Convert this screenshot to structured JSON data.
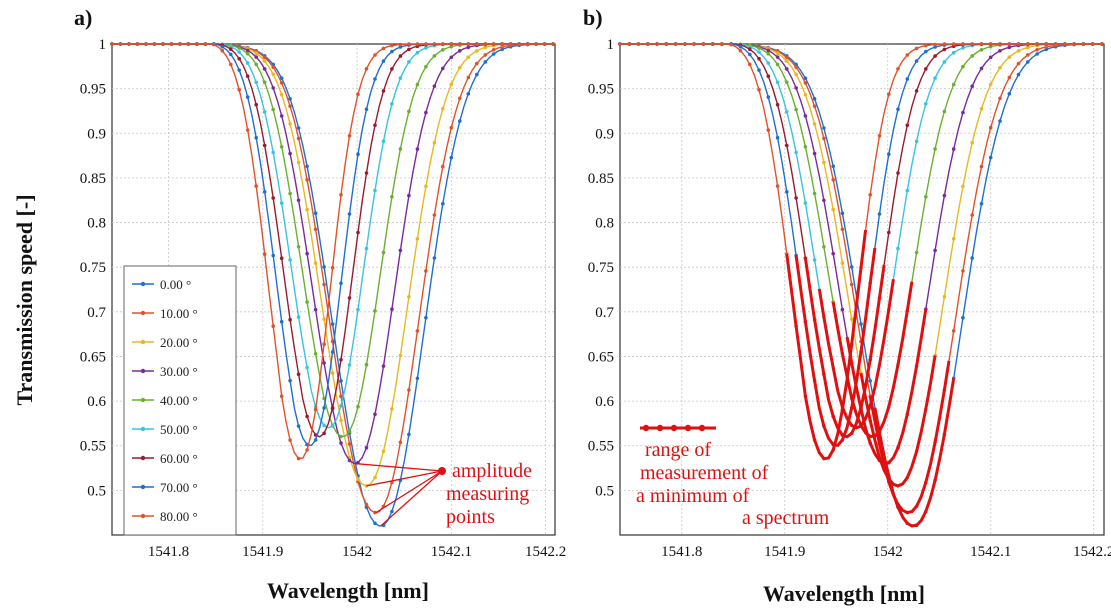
{
  "figure": {
    "ylabel": "Transmission speed [-]",
    "xlabel": "Wavelength [nm]"
  },
  "chart_data": [
    {
      "type": "line",
      "panel_label": "a)",
      "xlabel": "Wavelength [nm]",
      "ylabel": "Transmission speed [-]",
      "xlim": [
        1541.74,
        1542.21
      ],
      "ylim": [
        0.45,
        1.0
      ],
      "xticks": [
        "1541.8",
        "1541.9",
        "1542",
        "1542.1",
        "1542.2"
      ],
      "yticks": [
        "0.5",
        "0.55",
        "0.6",
        "0.65",
        "0.7",
        "0.75",
        "0.8",
        "0.85",
        "0.9",
        "0.95",
        "1"
      ],
      "grid": true,
      "legend_position": "lower-left",
      "series": [
        {
          "name": "0.00 °",
          "color": "#1f6fd0",
          "minimum": [
            1542.025,
            0.46
          ]
        },
        {
          "name": "10.00 °",
          "color": "#e0522a",
          "minimum": [
            1542.02,
            0.475
          ]
        },
        {
          "name": "20.00 °",
          "color": "#e8b820",
          "minimum": [
            1542.01,
            0.505
          ]
        },
        {
          "name": "30.00 °",
          "color": "#7a2a9a",
          "minimum": [
            1541.998,
            0.53
          ]
        },
        {
          "name": "40.00 °",
          "color": "#6ab030",
          "minimum": [
            1541.985,
            0.56
          ]
        },
        {
          "name": "50.00 °",
          "color": "#38c4e0",
          "minimum": [
            1541.97,
            0.57
          ]
        },
        {
          "name": "60.00 °",
          "color": "#9a1a30",
          "minimum": [
            1541.96,
            0.56
          ]
        },
        {
          "name": "70.00 °",
          "color": "#1f6fd0",
          "minimum": [
            1541.95,
            0.55
          ]
        },
        {
          "name": "80.00 °",
          "color": "#e0522a",
          "minimum": [
            1541.94,
            0.535
          ]
        }
      ],
      "annotations": [
        {
          "lines": [
            "amplitude",
            "measuring",
            "points"
          ],
          "color": "#e01010"
        }
      ]
    },
    {
      "type": "line",
      "panel_label": "b)",
      "xlabel": "Wavelength [nm]",
      "xlim": [
        1541.74,
        1542.21
      ],
      "ylim": [
        0.45,
        1.0
      ],
      "xticks": [
        "1541.8",
        "1541.9",
        "1542",
        "1542.1",
        "1542.2"
      ],
      "yticks": [
        "0.5",
        "0.55",
        "0.6",
        "0.65",
        "0.7",
        "0.75",
        "0.8",
        "0.85",
        "0.9",
        "0.95",
        "1"
      ],
      "grid": true,
      "series": [
        {
          "color": "#1f6fd0",
          "minimum": [
            1542.025,
            0.46
          ]
        },
        {
          "color": "#e0522a",
          "minimum": [
            1542.02,
            0.475
          ]
        },
        {
          "color": "#e8b820",
          "minimum": [
            1542.01,
            0.505
          ]
        },
        {
          "color": "#7a2a9a",
          "minimum": [
            1541.998,
            0.53
          ]
        },
        {
          "color": "#6ab030",
          "minimum": [
            1541.985,
            0.56
          ]
        },
        {
          "color": "#38c4e0",
          "minimum": [
            1541.97,
            0.57
          ]
        },
        {
          "color": "#9a1a30",
          "minimum": [
            1541.96,
            0.56
          ]
        },
        {
          "color": "#1f6fd0",
          "minimum": [
            1541.95,
            0.55
          ]
        },
        {
          "color": "#e0522a",
          "minimum": [
            1541.94,
            0.535
          ]
        }
      ],
      "highlight_color": "#e01010",
      "annotations": [
        {
          "lines": [
            "range of",
            "measurement of",
            "a minimum of",
            "a spectrum"
          ],
          "color": "#e01010"
        }
      ]
    }
  ]
}
